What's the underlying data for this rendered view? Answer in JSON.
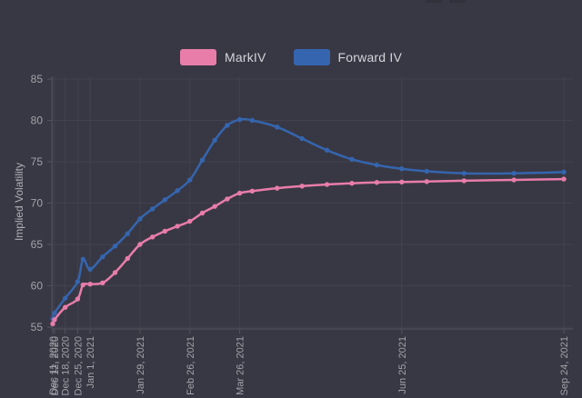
{
  "page": {
    "background": "#383844",
    "grid_color": "#42424e",
    "axis_color": "#53535e",
    "tick_label_color": "#a2a2aa"
  },
  "legend": {
    "items": [
      {
        "label": "MarkIV",
        "color": "#e87daa"
      },
      {
        "label": "Forward IV",
        "color": "#3565ae"
      }
    ]
  },
  "chart_data": {
    "type": "line",
    "title": "",
    "xlabel": "",
    "ylabel": "Implied Volatility",
    "ylim": [
      55,
      85
    ],
    "yticks": [
      55,
      60,
      65,
      70,
      75,
      80,
      85
    ],
    "grid": true,
    "legend_position": "top",
    "x": [
      "Dec 11, 2020",
      "Dec 12, 2020",
      "Dec 18, 2020",
      "Dec 25, 2020",
      "Dec 28, 2020",
      "Jan 1, 2021",
      "Jan 8, 2021",
      "Jan 15, 2021",
      "Jan 22, 2021",
      "Jan 29, 2021",
      "Feb 5, 2021",
      "Feb 12, 2021",
      "Feb 19, 2021",
      "Feb 26, 2021",
      "Mar 5, 2021",
      "Mar 12, 2021",
      "Mar 19, 2021",
      "Mar 26, 2021",
      "Apr 2, 2021",
      "Apr 16, 2021",
      "Apr 30, 2021",
      "May 14, 2021",
      "May 28, 2021",
      "Jun 11, 2021",
      "Jun 25, 2021",
      "Jul 9, 2021",
      "Jul 30, 2021",
      "Aug 27, 2021",
      "Sep 24, 2021"
    ],
    "days": [
      0,
      1,
      7,
      14,
      17,
      21,
      28,
      35,
      42,
      49,
      56,
      63,
      70,
      77,
      84,
      91,
      98,
      105,
      112,
      126,
      140,
      154,
      168,
      182,
      196,
      210,
      231,
      259,
      287
    ],
    "xticks": [
      {
        "label": "Dec 11, 2020",
        "day": 0
      },
      {
        "label": "Dec 12, 2020",
        "day": 1
      },
      {
        "label": "Dec 18, 2020",
        "day": 7
      },
      {
        "label": "Dec 25, 2020",
        "day": 14
      },
      {
        "label": "Jan 1, 2021",
        "day": 21
      },
      {
        "label": "Jan 29, 2021",
        "day": 49
      },
      {
        "label": "Feb 26, 2021",
        "day": 77
      },
      {
        "label": "Mar 26, 2021",
        "day": 105
      },
      {
        "label": "Jun 25, 2021",
        "day": 196
      },
      {
        "label": "Sep 24, 2021",
        "day": 287
      }
    ],
    "series": [
      {
        "name": "MarkIV",
        "id": "markiv",
        "color": "#e87daa",
        "values": [
          55.4,
          55.9,
          57.4,
          58.4,
          60.1,
          60.2,
          60.35,
          61.6,
          63.3,
          65.0,
          65.9,
          66.6,
          67.2,
          67.8,
          68.8,
          69.6,
          70.5,
          71.2,
          71.45,
          71.8,
          72.05,
          72.25,
          72.4,
          72.5,
          72.55,
          72.6,
          72.7,
          72.8,
          72.9
        ]
      },
      {
        "name": "Forward IV",
        "id": "forward-iv",
        "color": "#3565ae",
        "values": [
          56.0,
          56.7,
          58.5,
          60.5,
          63.2,
          62.0,
          63.5,
          64.8,
          66.3,
          68.1,
          69.3,
          70.4,
          71.5,
          72.8,
          75.2,
          77.6,
          79.4,
          80.1,
          80.0,
          79.2,
          77.8,
          76.4,
          75.3,
          74.6,
          74.15,
          73.85,
          73.6,
          73.6,
          73.75
        ]
      }
    ]
  }
}
